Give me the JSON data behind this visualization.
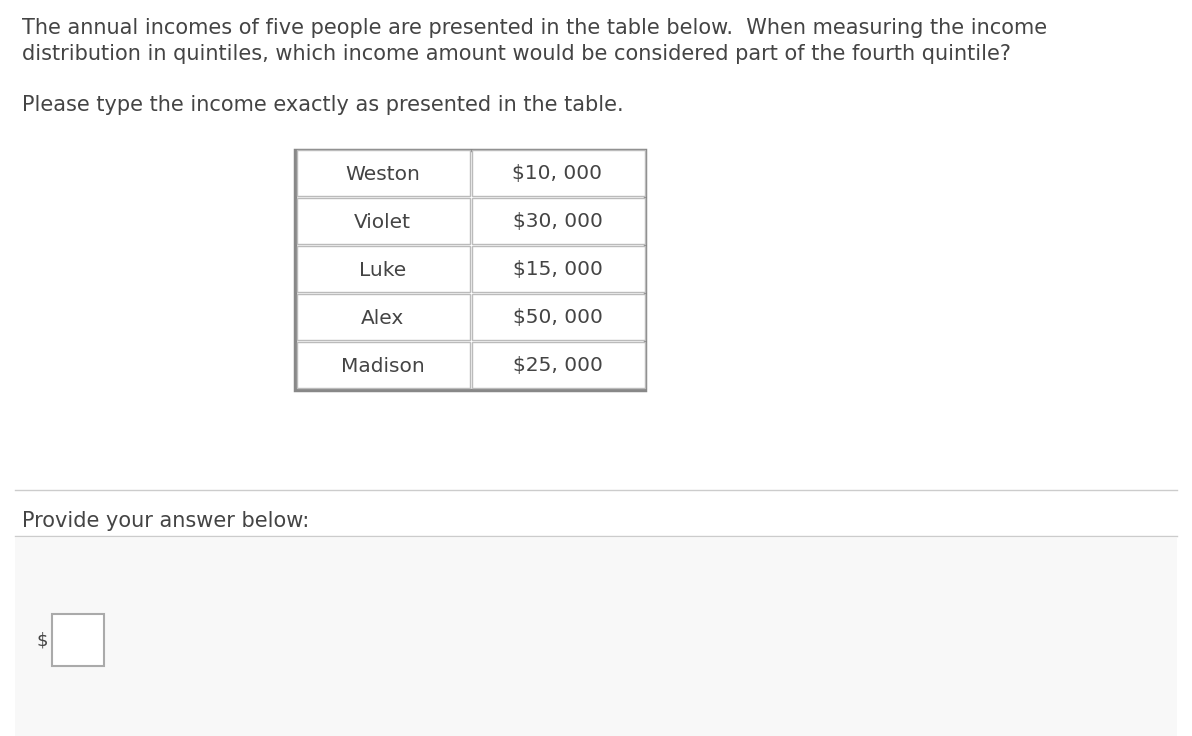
{
  "background_color": "#ffffff",
  "question_text_line1": "The annual incomes of five people are presented in the table below.  When measuring the income",
  "question_text_line2": "distribution in quintiles, which income amount would be considered part of the fourth quintile?",
  "instruction_text": "Please type the income exactly as presented in the table.",
  "table_names": [
    "Weston",
    "Violet",
    "Luke",
    "Alex",
    "Madison"
  ],
  "table_incomes": [
    "$10, 000",
    "$30, 000",
    "$15, 000",
    "$50, 000",
    "$25, 000"
  ],
  "provide_answer_text": "Provide your answer below:",
  "answer_box_label": "$",
  "text_color": "#444444",
  "table_text_color": "#444444",
  "separator_line_color": "#cccccc",
  "table_outer_border_color": "#888888",
  "table_inner_border_color": "#bbbbbb",
  "answer_box_color": "#ffffff",
  "answer_box_border_color": "#aaaaaa",
  "answer_area_bg": "#f8f8f8"
}
